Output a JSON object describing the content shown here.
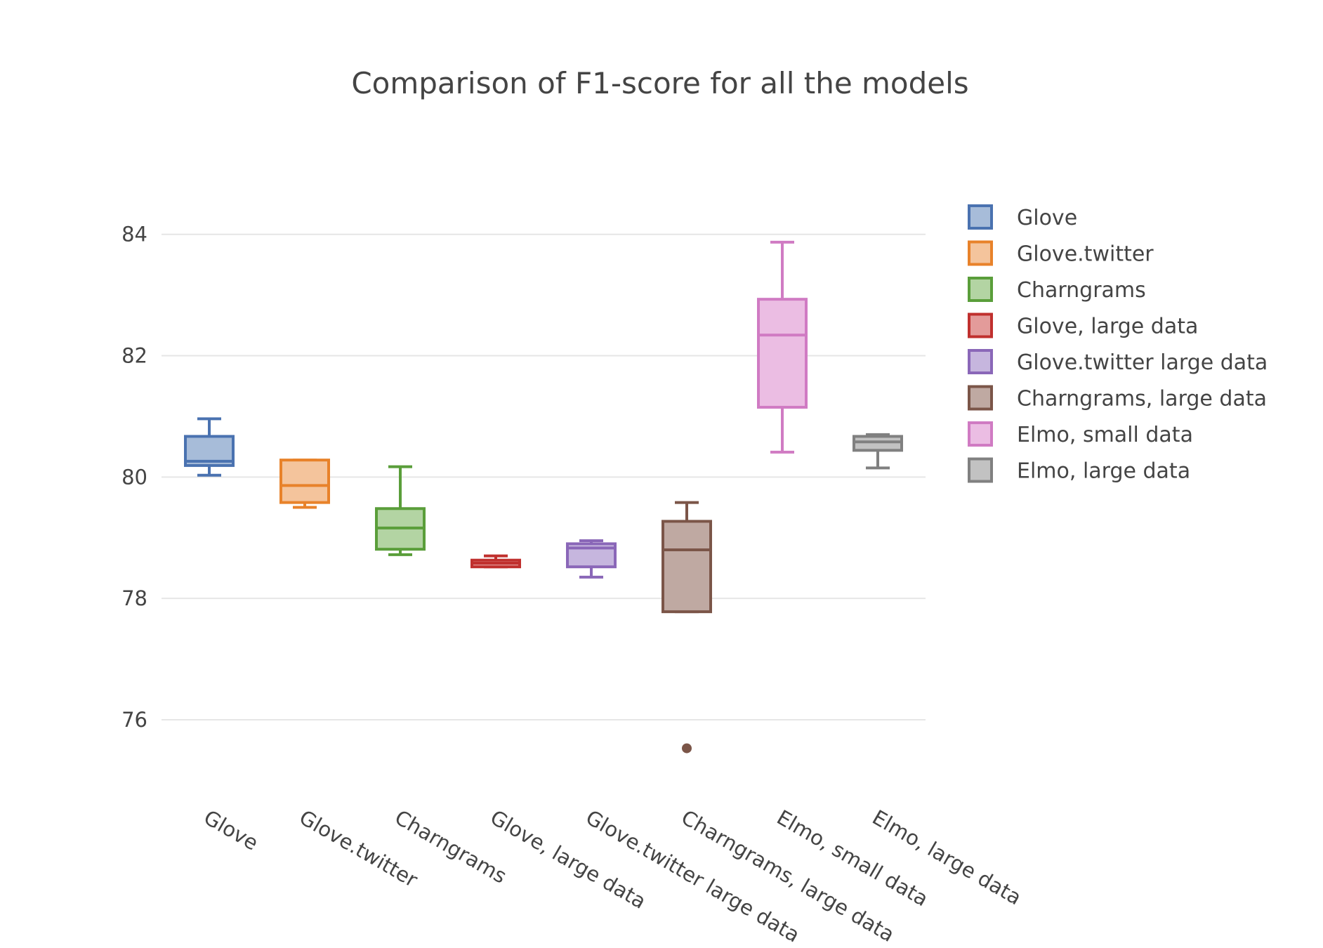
{
  "chart_data": {
    "type": "box",
    "title": "Comparison of F1-score for all the models",
    "xlabel": "",
    "ylabel": "",
    "ylim": [
      74.9,
      85.2
    ],
    "y_ticks": [
      76,
      78,
      80,
      82,
      84
    ],
    "grid": true,
    "legend_position": "right",
    "categories": [
      "Glove",
      "Glove.twitter",
      "Charngrams",
      "Glove, large data",
      "Glove.twitter large data",
      "Charngrams, large data",
      "Elmo, small data",
      "Elmo, large data"
    ],
    "series": [
      {
        "name": "Glove",
        "color": "#4a72b0",
        "fill": "#a7bcd9",
        "min": 80.03,
        "q1": 80.19,
        "median": 80.26,
        "q3": 80.67,
        "max": 80.96,
        "outliers": []
      },
      {
        "name": "Glove.twitter",
        "color": "#e8822a",
        "fill": "#f4c49c",
        "min": 79.5,
        "q1": 79.58,
        "median": 79.86,
        "q3": 80.28,
        "max": 80.28,
        "outliers": []
      },
      {
        "name": "Charngrams",
        "color": "#5a9e3a",
        "fill": "#b3d4a3",
        "min": 78.72,
        "q1": 78.81,
        "median": 79.16,
        "q3": 79.48,
        "max": 80.17,
        "outliers": []
      },
      {
        "name": "Glove, large data",
        "color": "#c0302e",
        "fill": "#e39b9a",
        "min": 78.52,
        "q1": 78.52,
        "median": 78.58,
        "q3": 78.63,
        "max": 78.7,
        "outliers": []
      },
      {
        "name": "Glove.twitter large data",
        "color": "#8a67b8",
        "fill": "#c6b6de",
        "min": 78.35,
        "q1": 78.52,
        "median": 78.83,
        "q3": 78.9,
        "max": 78.95,
        "outliers": []
      },
      {
        "name": "Charngrams, large data",
        "color": "#7b5548",
        "fill": "#bfa9a2",
        "min": 77.78,
        "q1": 77.78,
        "median": 78.8,
        "q3": 79.27,
        "max": 79.58,
        "outliers": [
          75.53
        ]
      },
      {
        "name": "Elmo, small data",
        "color": "#d07bc3",
        "fill": "#ebbde3",
        "min": 80.41,
        "q1": 81.15,
        "median": 82.34,
        "q3": 82.93,
        "max": 83.87,
        "outliers": []
      },
      {
        "name": "Elmo, large data",
        "color": "#808080",
        "fill": "#c2c2c2",
        "min": 80.15,
        "q1": 80.44,
        "median": 80.58,
        "q3": 80.67,
        "max": 80.7,
        "outliers": []
      }
    ]
  }
}
